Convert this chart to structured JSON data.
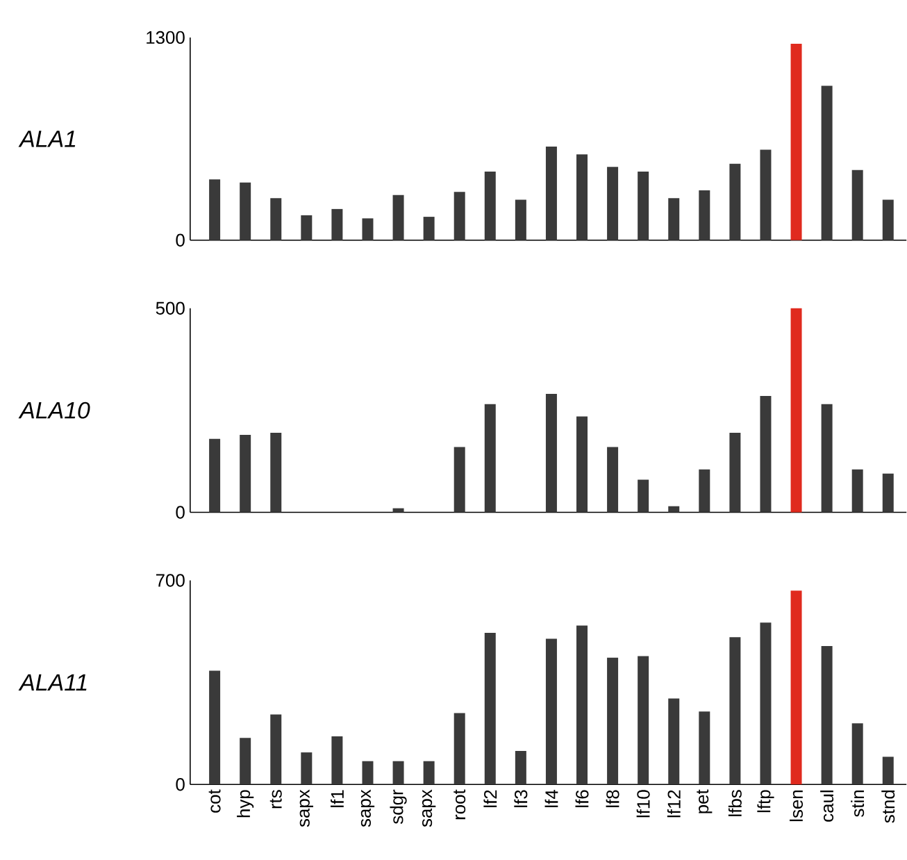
{
  "chart_data": [
    {
      "type": "bar",
      "ylabel": "ALA1",
      "categories": [
        null,
        null,
        null,
        null,
        null,
        null,
        null,
        null,
        null,
        null,
        null,
        null,
        null,
        null,
        null,
        null,
        null,
        null,
        null,
        null,
        null,
        null,
        null
      ],
      "values": [
        390,
        370,
        270,
        160,
        200,
        140,
        290,
        150,
        310,
        440,
        260,
        600,
        550,
        470,
        440,
        270,
        320,
        490,
        580,
        1260,
        990,
        450,
        260
      ],
      "colors": [
        "#3a3a3a",
        "#3a3a3a",
        "#3a3a3a",
        "#3a3a3a",
        "#3a3a3a",
        "#3a3a3a",
        "#3a3a3a",
        "#3a3a3a",
        "#3a3a3a",
        "#3a3a3a",
        "#3a3a3a",
        "#3a3a3a",
        "#3a3a3a",
        "#3a3a3a",
        "#3a3a3a",
        "#3a3a3a",
        "#3a3a3a",
        "#3a3a3a",
        "#3a3a3a",
        "#e02a1e",
        "#3a3a3a",
        "#3a3a3a",
        "#3a3a3a"
      ],
      "ylim": [
        0,
        1300
      ],
      "yticks": [
        0,
        1300
      ],
      "tick_labels": "y"
    },
    {
      "type": "bar",
      "ylabel": "ALA10",
      "categories": [
        null,
        null,
        null,
        null,
        null,
        null,
        null,
        null,
        null,
        null,
        null,
        null,
        null,
        null,
        null,
        null,
        null,
        null,
        null,
        null,
        null,
        null,
        null
      ],
      "values": [
        180,
        190,
        195,
        0,
        0,
        0,
        10,
        0,
        160,
        265,
        0,
        290,
        235,
        160,
        80,
        15,
        105,
        195,
        285,
        500,
        265,
        105,
        95
      ],
      "colors": [
        "#3a3a3a",
        "#3a3a3a",
        "#3a3a3a",
        "#3a3a3a",
        "#3a3a3a",
        "#3a3a3a",
        "#3a3a3a",
        "#3a3a3a",
        "#3a3a3a",
        "#3a3a3a",
        "#3a3a3a",
        "#3a3a3a",
        "#3a3a3a",
        "#3a3a3a",
        "#3a3a3a",
        "#3a3a3a",
        "#3a3a3a",
        "#3a3a3a",
        "#3a3a3a",
        "#e02a1e",
        "#3a3a3a",
        "#3a3a3a",
        "#3a3a3a"
      ],
      "ylim": [
        0,
        500
      ],
      "yticks": [
        0,
        500
      ],
      "tick_labels": "y"
    },
    {
      "type": "bar",
      "ylabel": "ALA11",
      "categories": [
        "cot",
        "hyp",
        "rts",
        "sapx",
        "lf1",
        "sapx",
        "sdgr",
        "sapx",
        "root",
        "lf2",
        "lf3",
        "lf4",
        "lf6",
        "lf8",
        "lf10",
        "lf12",
        "pet",
        "lfbs",
        "lftp",
        "lsen",
        "caul",
        "stin",
        "stnd"
      ],
      "values": [
        390,
        160,
        240,
        110,
        165,
        80,
        80,
        80,
        245,
        520,
        115,
        500,
        545,
        435,
        440,
        295,
        250,
        505,
        555,
        665,
        475,
        210,
        95
      ],
      "colors": [
        "#3a3a3a",
        "#3a3a3a",
        "#3a3a3a",
        "#3a3a3a",
        "#3a3a3a",
        "#3a3a3a",
        "#3a3a3a",
        "#3a3a3a",
        "#3a3a3a",
        "#3a3a3a",
        "#3a3a3a",
        "#3a3a3a",
        "#3a3a3a",
        "#3a3a3a",
        "#3a3a3a",
        "#3a3a3a",
        "#3a3a3a",
        "#3a3a3a",
        "#3a3a3a",
        "#e02a1e",
        "#3a3a3a",
        "#3a3a3a",
        "#3a3a3a"
      ],
      "ylim": [
        0,
        700
      ],
      "yticks": [
        0,
        700
      ]
    }
  ]
}
